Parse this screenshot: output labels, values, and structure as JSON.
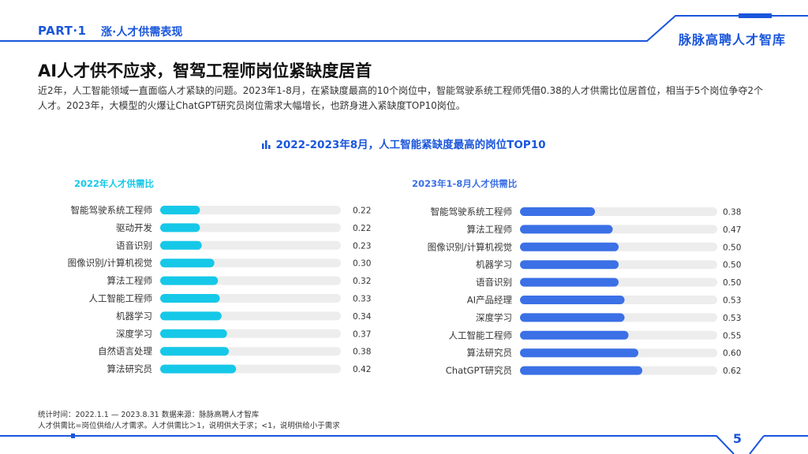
{
  "header": {
    "part": "PART·1",
    "section": "涨·人才供需表现",
    "brand": "脉脉高聘人才智库"
  },
  "headline": "AI人才供不应求，智驾工程师岗位紧缺度居首",
  "intro": "近2年，人工智能领域一直面临人才紧缺的问题。2023年1-8月，在紧缺度最高的10个岗位中，智能驾驶系统工程师凭借0.38的人才供需比位居首位，相当于5个岗位争夺2个人才。2023年，大模型的火爆让ChatGPT研究员岗位需求大幅增长，也跻身进入紧缺度TOP10岗位。",
  "chart_title": "2022-2023年8月，人工智能紧缺度最高的岗位TOP10",
  "chart_data": [
    {
      "type": "bar",
      "orientation": "horizontal",
      "title": "2022年人才供需比",
      "color": "#16c8e8",
      "categories": [
        "智能驾驶系统工程师",
        "驱动开发",
        "语音识别",
        "图像识别/计算机视觉",
        "算法工程师",
        "人工智能工程师",
        "机器学习",
        "深度学习",
        "自然语言处理",
        "算法研究员"
      ],
      "values": [
        0.22,
        0.22,
        0.23,
        0.3,
        0.32,
        0.33,
        0.34,
        0.37,
        0.38,
        0.42
      ],
      "value_labels": [
        "0.22",
        "0.22",
        "0.23",
        "0.30",
        "0.32",
        "0.33",
        "0.34",
        "0.37",
        "0.38",
        "0.42"
      ],
      "xlim": [
        0,
        1
      ]
    },
    {
      "type": "bar",
      "orientation": "horizontal",
      "title": "2023年1-8月人才供需比",
      "color": "#3b70e6",
      "categories": [
        "智能驾驶系统工程师",
        "算法工程师",
        "图像识别/计算机视觉",
        "机器学习",
        "语音识别",
        "AI产品经理",
        "深度学习",
        "人工智能工程师",
        "算法研究员",
        "ChatGPT研究员"
      ],
      "values": [
        0.38,
        0.47,
        0.5,
        0.5,
        0.5,
        0.53,
        0.53,
        0.55,
        0.6,
        0.62
      ],
      "value_labels": [
        "0.38",
        "0.47",
        "0.50",
        "0.50",
        "0.50",
        "0.53",
        "0.53",
        "0.55",
        "0.60",
        "0.62"
      ],
      "xlim": [
        0,
        1
      ]
    }
  ],
  "notes": {
    "line1": "统计时间：2022.1.1 — 2023.8.31   数据来源：脉脉高聘人才智库",
    "line2": "人才供需比=岗位供给/人才需求。人才供需比＞1，说明供大于求；<1，说明供给小于需求"
  },
  "page_number": "5",
  "colors": {
    "accent": "#1a56db",
    "bar2022": "#16c8e8",
    "bar2023": "#3b70e6",
    "track": "#ededed"
  },
  "icons": {
    "chart_title_icon": "bar-chart-icon"
  }
}
